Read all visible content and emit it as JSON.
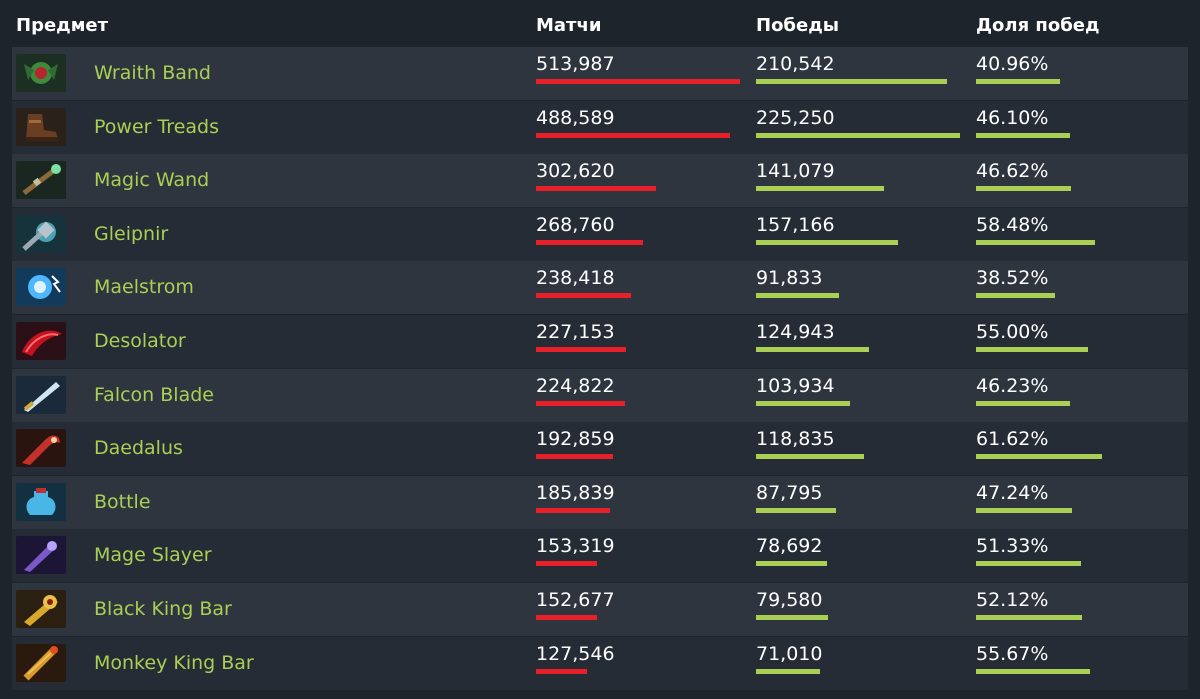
{
  "headers": {
    "item": "Предмет",
    "matches": "Матчи",
    "wins": "Победы",
    "winrate": "Доля побед"
  },
  "colors": {
    "matches_bar": "#e8202a",
    "wins_bar": "#a9cf54",
    "item_name": "#a9cf54"
  },
  "items": [
    {
      "name": "Wraith Band",
      "icon": "wraith-band-icon",
      "matches": "513,987",
      "wins": "210,542",
      "winrate": "40.96%",
      "matches_value": 513987,
      "wins_value": 210542,
      "winrate_value": 40.96
    },
    {
      "name": "Power Treads",
      "icon": "power-treads-icon",
      "matches": "488,589",
      "wins": "225,250",
      "winrate": "46.10%",
      "matches_value": 488589,
      "wins_value": 225250,
      "winrate_value": 46.1
    },
    {
      "name": "Magic Wand",
      "icon": "magic-wand-icon",
      "matches": "302,620",
      "wins": "141,079",
      "winrate": "46.62%",
      "matches_value": 302620,
      "wins_value": 141079,
      "winrate_value": 46.62
    },
    {
      "name": "Gleipnir",
      "icon": "gleipnir-icon",
      "matches": "268,760",
      "wins": "157,166",
      "winrate": "58.48%",
      "matches_value": 268760,
      "wins_value": 157166,
      "winrate_value": 58.48
    },
    {
      "name": "Maelstrom",
      "icon": "maelstrom-icon",
      "matches": "238,418",
      "wins": "91,833",
      "winrate": "38.52%",
      "matches_value": 238418,
      "wins_value": 91833,
      "winrate_value": 38.52
    },
    {
      "name": "Desolator",
      "icon": "desolator-icon",
      "matches": "227,153",
      "wins": "124,943",
      "winrate": "55.00%",
      "matches_value": 227153,
      "wins_value": 124943,
      "winrate_value": 55.0
    },
    {
      "name": "Falcon Blade",
      "icon": "falcon-blade-icon",
      "matches": "224,822",
      "wins": "103,934",
      "winrate": "46.23%",
      "matches_value": 224822,
      "wins_value": 103934,
      "winrate_value": 46.23
    },
    {
      "name": "Daedalus",
      "icon": "daedalus-icon",
      "matches": "192,859",
      "wins": "118,835",
      "winrate": "61.62%",
      "matches_value": 192859,
      "wins_value": 118835,
      "winrate_value": 61.62
    },
    {
      "name": "Bottle",
      "icon": "bottle-icon",
      "matches": "185,839",
      "wins": "87,795",
      "winrate": "47.24%",
      "matches_value": 185839,
      "wins_value": 87795,
      "winrate_value": 47.24
    },
    {
      "name": "Mage Slayer",
      "icon": "mage-slayer-icon",
      "matches": "153,319",
      "wins": "78,692",
      "winrate": "51.33%",
      "matches_value": 153319,
      "wins_value": 78692,
      "winrate_value": 51.33
    },
    {
      "name": "Black King Bar",
      "icon": "black-king-bar-icon",
      "matches": "152,677",
      "wins": "79,580",
      "winrate": "52.12%",
      "matches_value": 152677,
      "wins_value": 79580,
      "winrate_value": 52.12
    },
    {
      "name": "Monkey King Bar",
      "icon": "monkey-king-bar-icon",
      "matches": "127,546",
      "wins": "71,010",
      "winrate": "55.67%",
      "matches_value": 127546,
      "wins_value": 71010,
      "winrate_value": 55.67
    }
  ]
}
